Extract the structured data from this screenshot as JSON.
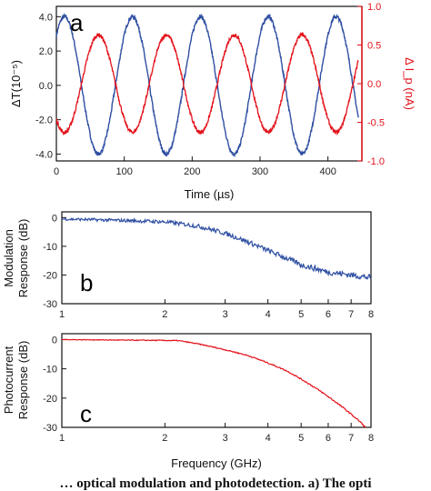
{
  "colors": {
    "blue": "#2f4fa2",
    "red": "#e3121b",
    "axis": "#111111"
  },
  "caption_fragment": "… optical modulation and photodetection. a) The opti",
  "chart_data": [
    {
      "panel": "a",
      "type": "line",
      "xlabel": "Time (µs)",
      "ylabel_left": "ΔT(10⁻⁵)",
      "ylabel_right": "Δ I_p (nA)",
      "xlim": [
        0,
        450
      ],
      "ylim_left": [
        -4.4,
        4.6
      ],
      "ylim_right": [
        -1.0,
        1.0
      ],
      "x_ticks": [
        0,
        100,
        200,
        300,
        400
      ],
      "x_tick_labels": [
        "0",
        "100",
        "200",
        "300",
        "400"
      ],
      "y_ticks_left": [
        -4,
        -2,
        0,
        2,
        4
      ],
      "y_tick_labels_left": [
        "-4.0",
        "-2.0",
        "0.0",
        "2.0",
        "4.0"
      ],
      "y_ticks_right": [
        -1,
        -0.5,
        0,
        0.5,
        1
      ],
      "y_tick_labels_right": [
        "-1.0",
        "-0.5",
        "0.0",
        "0.5",
        "1.0"
      ],
      "series": [
        {
          "axis": "left",
          "color": "#2f4fa2",
          "kind": "sine",
          "amplitude": 4.0,
          "period": 100,
          "peak_at": 12,
          "offset": 0.0,
          "noise": 0.03
        },
        {
          "axis": "right",
          "color": "#e3121b",
          "kind": "sine",
          "amplitude": 0.63,
          "period": 100,
          "peak_at": 62,
          "offset": 0.0,
          "noise": 0.04
        }
      ],
      "x_range_data": [
        0,
        445
      ]
    },
    {
      "panel": "b",
      "type": "line",
      "xlabel": "",
      "ylabel": "Modulation Response (dB)",
      "ylabel_lines": [
        "Modulation",
        "Response (dB)"
      ],
      "xscale": "log",
      "xlim": [
        1,
        8
      ],
      "ylim": [
        -30,
        2
      ],
      "x_ticks": [
        1,
        2,
        3,
        4,
        5,
        6,
        7,
        8
      ],
      "x_tick_labels": [
        "1",
        "2",
        "3",
        "4",
        "5",
        "6",
        "7",
        "8"
      ],
      "y_ticks": [
        0,
        -10,
        -20,
        -30
      ],
      "y_tick_labels": [
        "0",
        "-10",
        "-20",
        "-30"
      ],
      "series": [
        {
          "color": "#2f4fa2",
          "noise": 1.1,
          "x": [
            1.0,
            1.5,
            2.0,
            2.5,
            3.0,
            3.5,
            4.0,
            4.5,
            5.0,
            6.0,
            7.0,
            8.0
          ],
          "y": [
            -0.5,
            -1.0,
            -1.5,
            -3.0,
            -5.5,
            -8.5,
            -11.5,
            -14.0,
            -16.5,
            -19.0,
            -20.0,
            -21.0
          ]
        }
      ]
    },
    {
      "panel": "c",
      "type": "line",
      "xlabel": "Frequency (GHz)",
      "ylabel": "Photocurrent Response (dB)",
      "ylabel_lines": [
        "Photocurrent",
        "Response (dB)"
      ],
      "xscale": "log",
      "xlim": [
        1,
        8
      ],
      "ylim": [
        -30,
        2
      ],
      "x_ticks": [
        1,
        2,
        3,
        4,
        5,
        6,
        7,
        8
      ],
      "x_tick_labels": [
        "1",
        "2",
        "3",
        "4",
        "5",
        "6",
        "7",
        "8"
      ],
      "y_ticks": [
        0,
        -10,
        -20,
        -30
      ],
      "y_tick_labels": [
        "0",
        "-10",
        "-20",
        "-30"
      ],
      "series": [
        {
          "color": "#e3121b",
          "noise": 0.25,
          "x": [
            1.0,
            1.5,
            2.0,
            2.2,
            2.5,
            3.0,
            3.5,
            4.0,
            4.5,
            5.0,
            5.5,
            6.0,
            6.5,
            7.0,
            7.5,
            7.7
          ],
          "y": [
            0.0,
            -0.2,
            -0.3,
            -0.4,
            -1.5,
            -3.5,
            -5.5,
            -8.0,
            -10.5,
            -13.5,
            -16.5,
            -19.5,
            -22.5,
            -25.5,
            -28.5,
            -30.0
          ]
        }
      ]
    }
  ]
}
